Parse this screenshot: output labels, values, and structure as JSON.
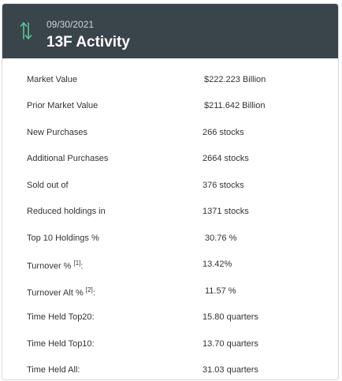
{
  "header": {
    "date": "09/30/2021",
    "title": "13F Activity",
    "icon": "up-down-arrows-icon",
    "accent_color": "#57c99b"
  },
  "rows": [
    {
      "label": "Market Value",
      "value": "$222.223 Billion"
    },
    {
      "label": "Prior Market Value",
      "value": "$211.642 Billion"
    },
    {
      "label": "New Purchases",
      "value": "266 stocks"
    },
    {
      "label": "Additional Purchases",
      "value": "2664 stocks"
    },
    {
      "label": "Sold out of",
      "value": "376 stocks"
    },
    {
      "label": "Reduced holdings in",
      "value": "1371 stocks"
    },
    {
      "label": "Top 10 Holdings %",
      "value": "30.76 %"
    },
    {
      "label": "Turnover %",
      "footnote": "[1]",
      "suffix": ":",
      "value": "13.42%"
    },
    {
      "label": "Turnover Alt %",
      "footnote": "[2]",
      "suffix": ":",
      "value": "11.57 %"
    },
    {
      "label": "Time Held Top20:",
      "value": "15.80 quarters"
    },
    {
      "label": "Time Held Top10:",
      "value": "13.70 quarters"
    },
    {
      "label": "Time Held All:",
      "value": "31.03 quarters"
    }
  ]
}
